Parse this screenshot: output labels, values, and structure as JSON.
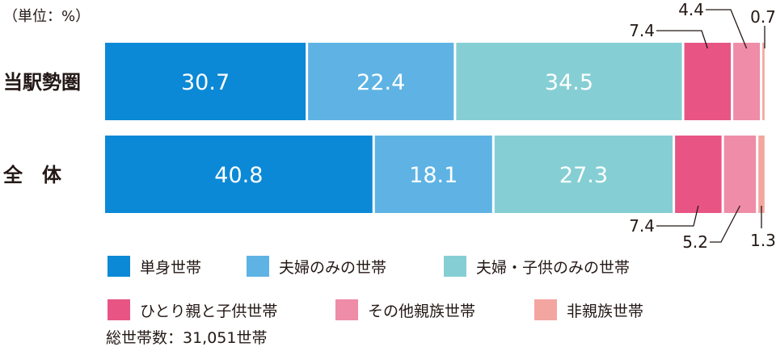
{
  "unit_note": "（単位：%）",
  "total_note": "総世帯数：31,051世帯",
  "chart_data": {
    "type": "stacked-bar-horizontal",
    "orientation": "horizontal",
    "stacked": true,
    "xlim": [
      0,
      100
    ],
    "grid": false,
    "legend_placement": "bottom",
    "categories": [
      "当駅勢圏",
      "全　体"
    ],
    "series": [
      {
        "name": "単身世帯",
        "color": "#0B89D6",
        "values": [
          30.7,
          40.8
        ]
      },
      {
        "name": "夫婦のみの世帯",
        "color": "#5EB3E4",
        "values": [
          22.4,
          18.1
        ]
      },
      {
        "name": "夫婦・子供のみの世帯",
        "color": "#85CFD4",
        "values": [
          34.5,
          27.3
        ]
      },
      {
        "name": "ひとり親と子供世帯",
        "color": "#E85585",
        "values": [
          7.4,
          7.4
        ]
      },
      {
        "name": "その他親族世帯",
        "color": "#EF8CA7",
        "values": [
          4.4,
          5.2
        ]
      },
      {
        "name": "非親族世帯",
        "color": "#F3A6A0",
        "values": [
          0.7,
          1.3
        ]
      }
    ],
    "value_labels": [
      [
        "30.7",
        "22.4",
        "34.5",
        "7.4",
        "4.4",
        "0.7"
      ],
      [
        "40.8",
        "18.1",
        "27.3",
        "7.4",
        "5.2",
        "1.3"
      ]
    ]
  }
}
